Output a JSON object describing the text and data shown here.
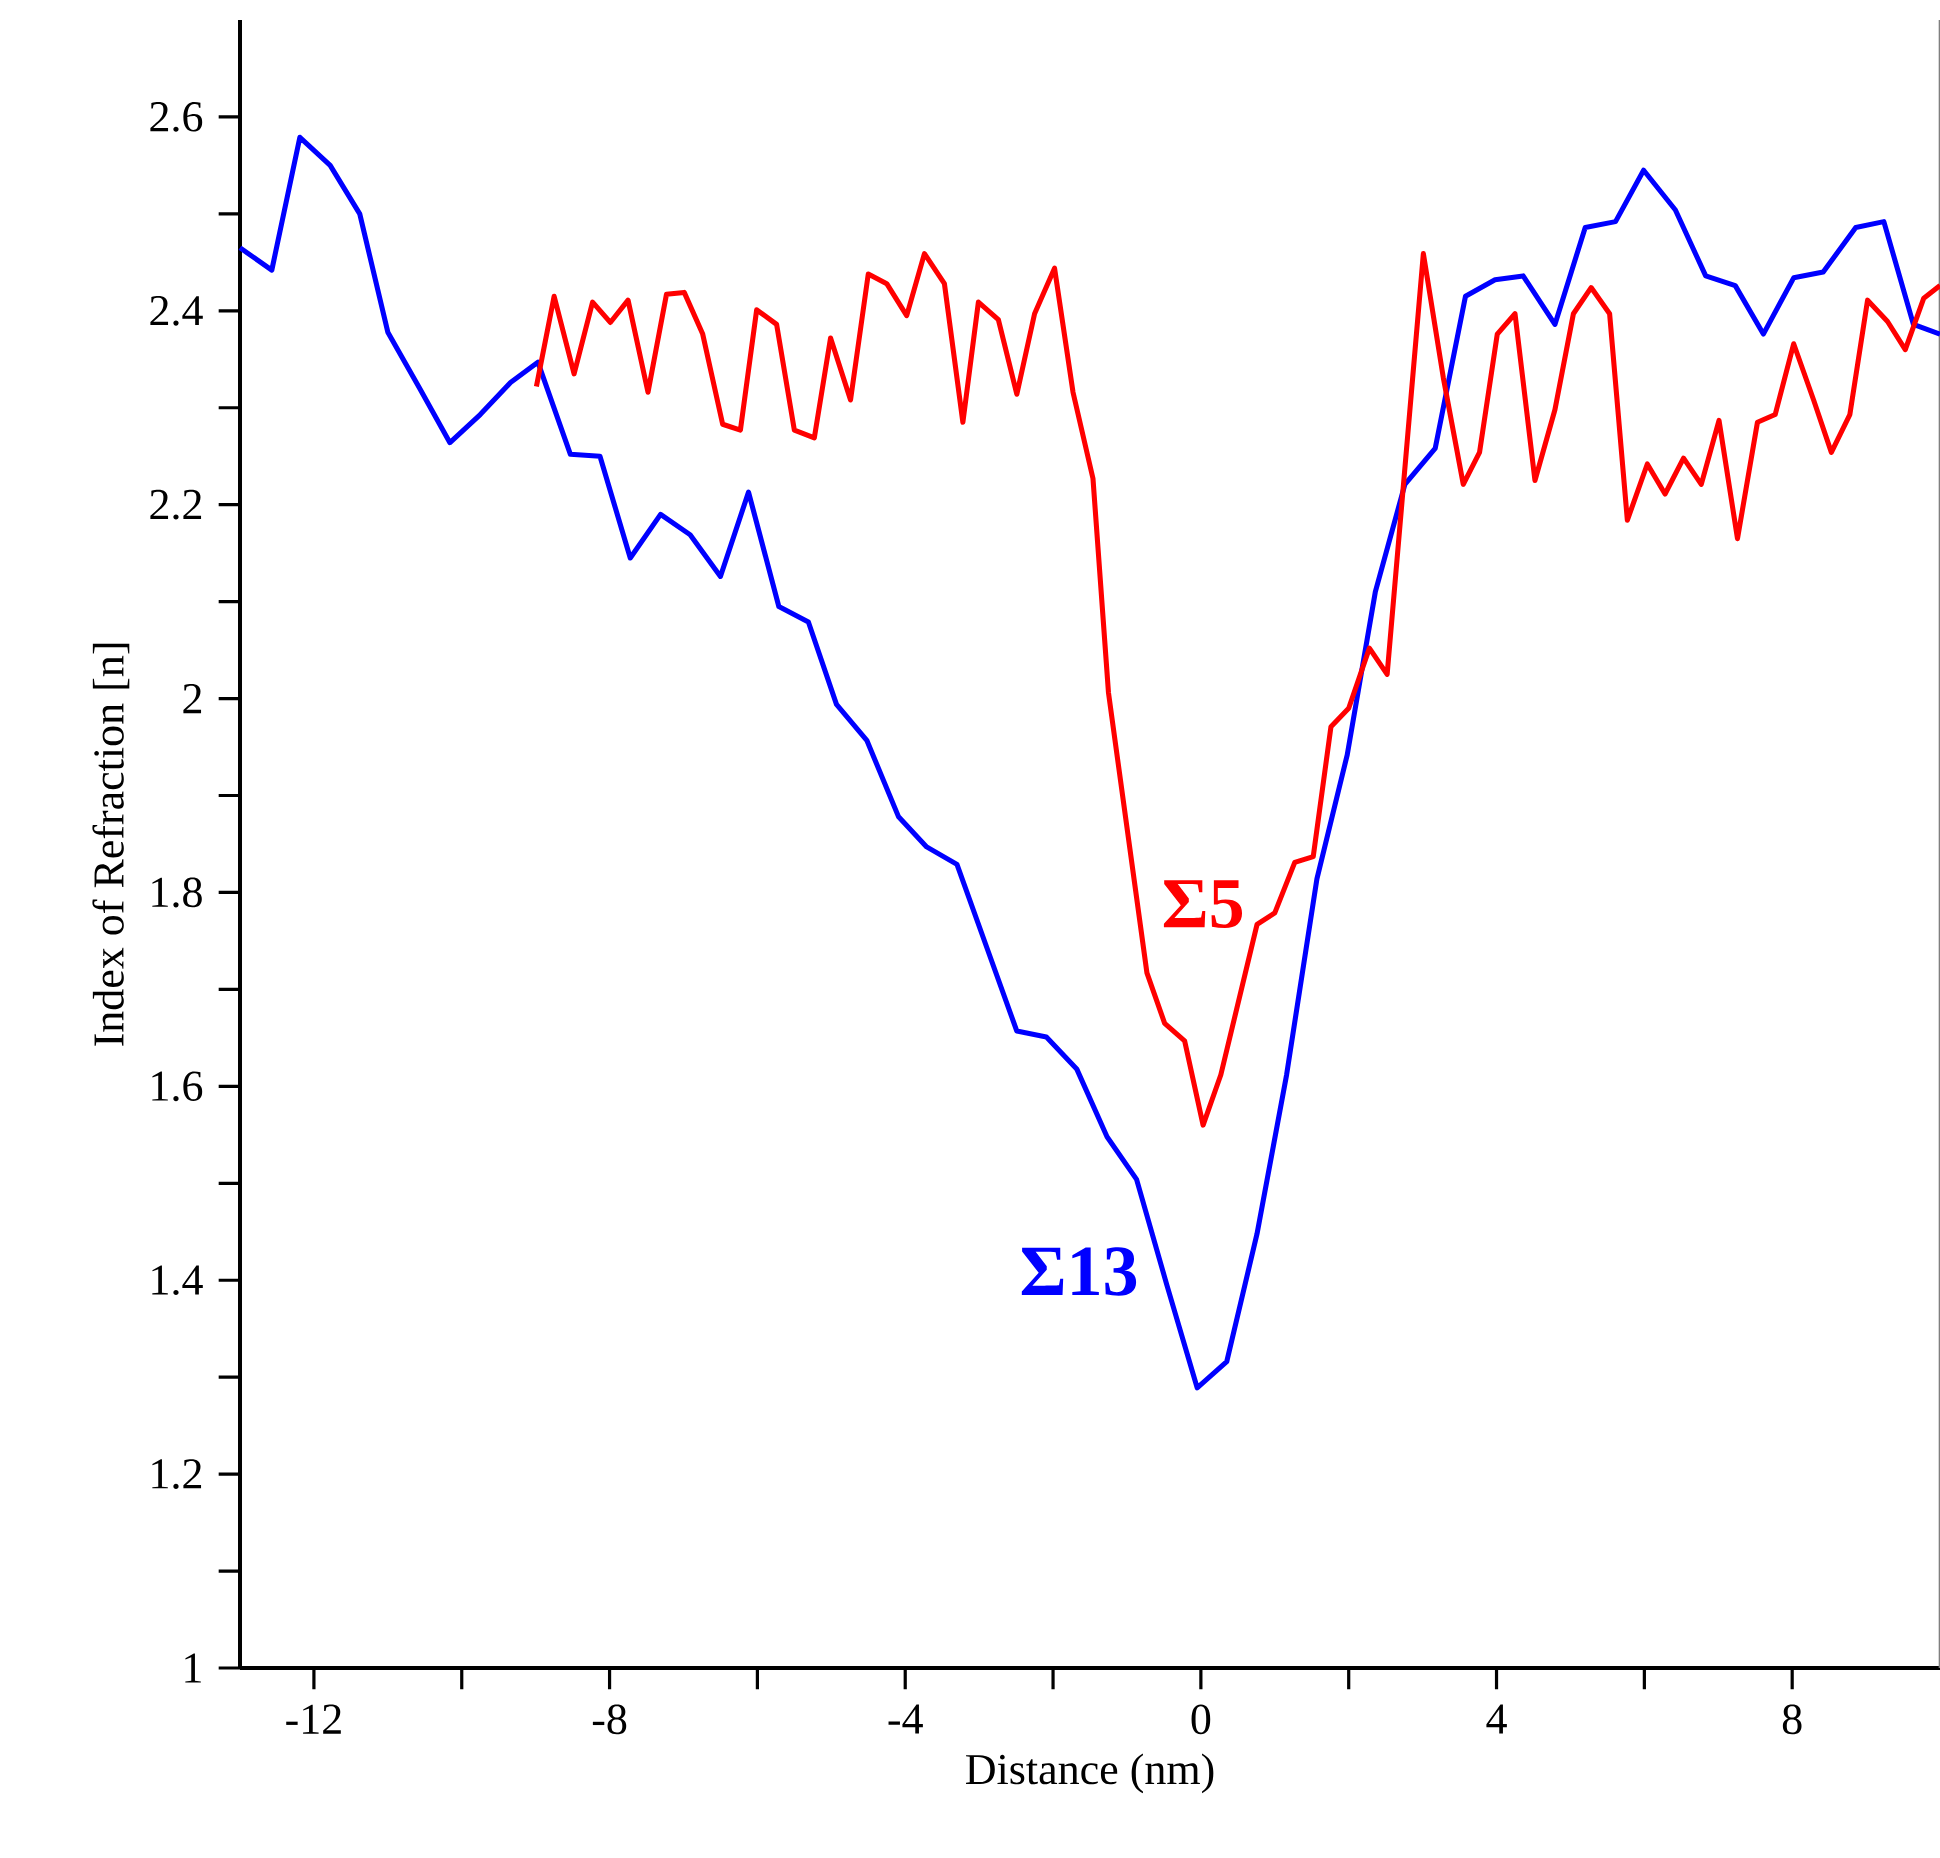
{
  "chart_data": {
    "type": "line",
    "xlabel": "Distance (nm)",
    "ylabel": "Index of Refraction [n]",
    "xlim": [
      -13,
      10
    ],
    "ylim": [
      1,
      2.7
    ],
    "xticks": [
      -12,
      {
        "value": -10,
        "label": null
      },
      -8,
      {
        "value": -6,
        "label": null
      },
      -4,
      {
        "value": -2,
        "label": null
      },
      0,
      {
        "value": 2,
        "label": null
      },
      4,
      {
        "value": 6,
        "label": null
      },
      8
    ],
    "yticks": [
      1,
      {
        "value": 1.1,
        "label": null
      },
      1.2,
      {
        "value": 1.3,
        "label": null
      },
      1.4,
      {
        "value": 1.5,
        "label": null
      },
      1.6,
      {
        "value": 1.7,
        "label": null
      },
      1.8,
      {
        "value": 1.9,
        "label": null
      },
      2,
      {
        "value": 2.1,
        "label": null
      },
      2.2,
      {
        "value": 2.3,
        "label": null
      },
      2.4,
      {
        "value": 2.5,
        "label": null
      },
      2.6
    ],
    "grid": false,
    "legend": false,
    "marker": "none",
    "line_style": "solid",
    "series": [
      {
        "name": "Σ13",
        "color": "#0000ff",
        "x": [
          -13,
          -12.57,
          -12.19,
          -11.78,
          -11.38,
          -11.0,
          -10.57,
          -10.16,
          -9.75,
          -9.34,
          -8.97,
          -8.53,
          -8.13,
          -7.72,
          -7.31,
          -6.91,
          -6.5,
          -6.12,
          -5.71,
          -5.31,
          -4.93,
          -4.52,
          -4.09,
          -3.71,
          -3.3,
          -2.9,
          -2.49,
          -2.09,
          -1.68,
          -1.27,
          -0.87,
          -0.46,
          -0.05,
          0.35,
          0.76,
          1.16,
          1.57,
          1.98,
          2.36,
          2.76,
          3.17,
          3.58,
          3.98,
          4.36,
          4.79,
          5.2,
          5.61,
          5.99,
          6.42,
          6.83,
          7.23,
          7.61,
          8.02,
          8.42,
          8.86,
          9.24,
          9.64,
          10.0
        ],
        "values": [
          2.465,
          2.442,
          2.579,
          2.55,
          2.5,
          2.378,
          2.32,
          2.264,
          2.293,
          2.326,
          2.347,
          2.252,
          2.25,
          2.145,
          2.19,
          2.169,
          2.126,
          2.213,
          2.095,
          2.079,
          1.994,
          1.957,
          1.878,
          1.847,
          1.829,
          1.744,
          1.657,
          1.651,
          1.618,
          1.548,
          1.504,
          1.395,
          1.289,
          1.316,
          1.448,
          1.612,
          1.814,
          1.942,
          2.11,
          2.221,
          2.258,
          2.415,
          2.432,
          2.436,
          2.386,
          2.486,
          2.492,
          2.545,
          2.504,
          2.436,
          2.426,
          2.376,
          2.434,
          2.44,
          2.486,
          2.492,
          2.386,
          2.376
        ]
      },
      {
        "name": "Σ5",
        "color": "#ff0000",
        "x": [
          -8.99,
          -8.75,
          -8.48,
          -8.23,
          -7.99,
          -7.75,
          -7.48,
          -7.23,
          -6.99,
          -6.74,
          -6.47,
          -6.23,
          -6.01,
          -5.74,
          -5.5,
          -5.23,
          -5.01,
          -4.74,
          -4.5,
          -4.25,
          -3.98,
          -3.74,
          -3.47,
          -3.22,
          -3.01,
          -2.74,
          -2.49,
          -2.25,
          -1.98,
          -1.73,
          -1.46,
          -1.25,
          -0.73,
          -0.49,
          -0.22,
          0.03,
          0.27,
          0.76,
          1.0,
          1.27,
          1.52,
          1.76,
          2.0,
          2.28,
          2.52,
          3.01,
          3.28,
          3.55,
          3.77,
          4.01,
          4.25,
          4.52,
          4.79,
          5.04,
          5.28,
          5.53,
          5.77,
          6.04,
          6.28,
          6.53,
          6.77,
          7.01,
          7.26,
          7.53,
          7.77,
          8.02,
          8.29,
          8.53,
          8.78,
          9.02,
          9.29,
          9.53,
          9.78,
          10.0
        ],
        "values": [
          2.322,
          2.415,
          2.335,
          2.409,
          2.388,
          2.411,
          2.316,
          2.417,
          2.419,
          2.376,
          2.283,
          2.277,
          2.401,
          2.386,
          2.277,
          2.269,
          2.372,
          2.308,
          2.438,
          2.428,
          2.395,
          2.459,
          2.428,
          2.285,
          2.409,
          2.391,
          2.314,
          2.397,
          2.444,
          2.316,
          2.227,
          2.006,
          1.717,
          1.665,
          1.647,
          1.56,
          1.612,
          1.767,
          1.779,
          1.831,
          1.837,
          1.971,
          1.99,
          2.052,
          2.025,
          2.459,
          2.331,
          2.221,
          2.254,
          2.376,
          2.397,
          2.225,
          2.298,
          2.397,
          2.424,
          2.397,
          2.184,
          2.242,
          2.211,
          2.248,
          2.221,
          2.287,
          2.165,
          2.285,
          2.293,
          2.366,
          2.308,
          2.254,
          2.293,
          2.411,
          2.389,
          2.36,
          2.413,
          2.426
        ]
      }
    ]
  }
}
